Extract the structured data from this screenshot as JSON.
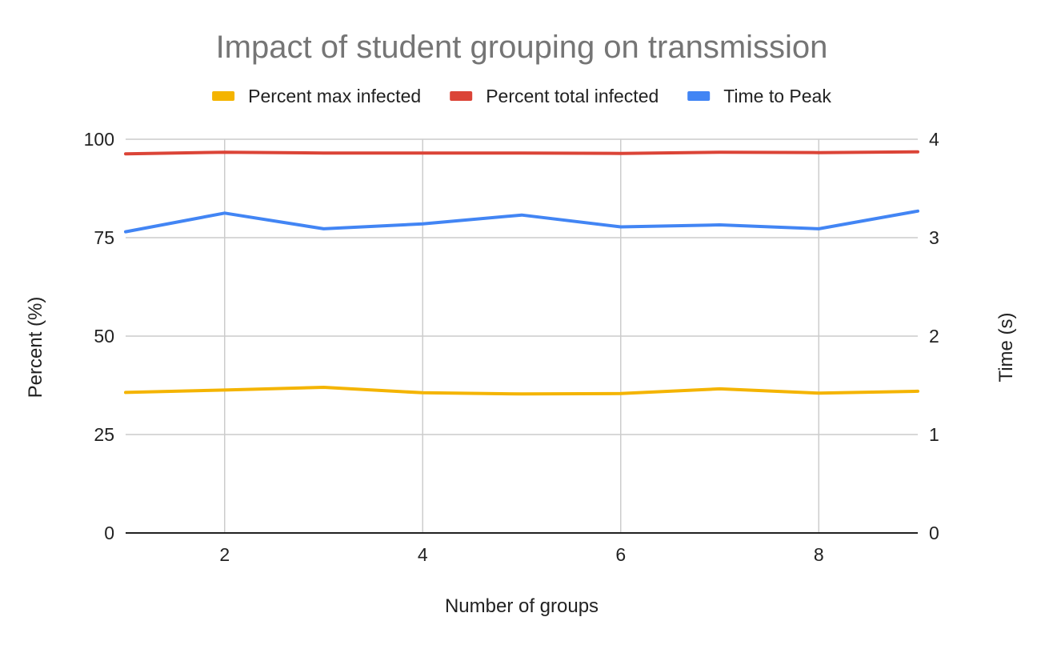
{
  "chart_data": {
    "type": "line",
    "title": "Impact of student grouping on transmission",
    "xlabel": "Number of groups",
    "ylabel": "Percent (%)",
    "y2label": "Time (s)",
    "x": [
      1,
      2,
      3,
      4,
      5,
      6,
      7,
      8,
      9
    ],
    "xlim": [
      1,
      9
    ],
    "xticks": [
      2,
      4,
      6,
      8
    ],
    "ylim": [
      0,
      100
    ],
    "yticks": [
      0,
      25,
      50,
      75,
      100
    ],
    "y2lim": [
      0,
      4
    ],
    "y2ticks": [
      0,
      1,
      2,
      3,
      4
    ],
    "grid": true,
    "legend_position": "top",
    "series": [
      {
        "name": "Percent max infected",
        "axis": "left",
        "color": "#F4B400",
        "values": [
          35.7,
          36.3,
          37.0,
          35.6,
          35.3,
          35.4,
          36.6,
          35.5,
          36.0
        ]
      },
      {
        "name": "Percent total infected",
        "axis": "left",
        "color": "#DB4437",
        "values": [
          96.3,
          96.7,
          96.5,
          96.5,
          96.5,
          96.4,
          96.7,
          96.6,
          96.8
        ]
      },
      {
        "name": "Time to Peak",
        "axis": "right",
        "color": "#4285F4",
        "values": [
          3.06,
          3.25,
          3.09,
          3.14,
          3.23,
          3.11,
          3.13,
          3.09,
          3.27
        ]
      }
    ]
  }
}
